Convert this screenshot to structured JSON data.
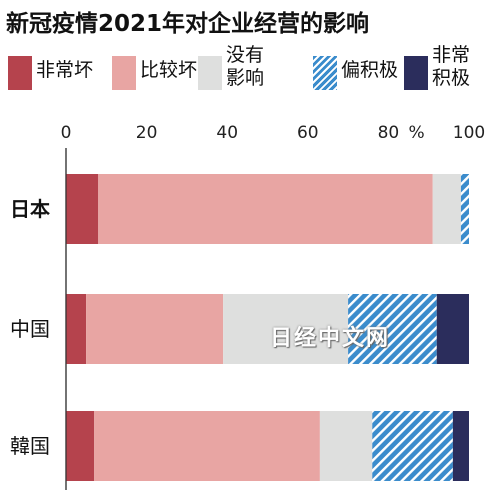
{
  "title": "新冠疫情2021年对企业经营的影响",
  "watermark": "日经中文网",
  "legend": [
    {
      "label": "非常坏",
      "color": "#b5434d",
      "pattern": "solid"
    },
    {
      "label": "比较坏",
      "color": "#e8a5a3",
      "pattern": "solid"
    },
    {
      "label": "没有\n影响",
      "color": "#dedfde",
      "pattern": "solid"
    },
    {
      "label": "偏积极",
      "color": "#3b8ccc",
      "pattern": "hatch"
    },
    {
      "label": "非常\n积极",
      "color": "#2b2d5c",
      "pattern": "solid"
    }
  ],
  "chart_data": {
    "type": "bar",
    "orientation": "horizontal",
    "stacked": true,
    "categories": [
      "日本",
      "中国",
      "韓国"
    ],
    "category_bold": [
      true,
      false,
      false
    ],
    "series": [
      {
        "name": "非常坏",
        "values": [
          8,
          5,
          7
        ]
      },
      {
        "name": "比较坏",
        "values": [
          83,
          34,
          56
        ]
      },
      {
        "name": "没有影响",
        "values": [
          7,
          31,
          13
        ]
      },
      {
        "name": "偏积极",
        "values": [
          2,
          22,
          20
        ]
      },
      {
        "name": "非常积极",
        "values": [
          0,
          8,
          4
        ]
      }
    ],
    "xlim": [
      0,
      100
    ],
    "xticks": [
      "0",
      "20",
      "40",
      "60",
      "80",
      "100"
    ],
    "unit": "%",
    "grid": false,
    "legend_position": "top"
  }
}
